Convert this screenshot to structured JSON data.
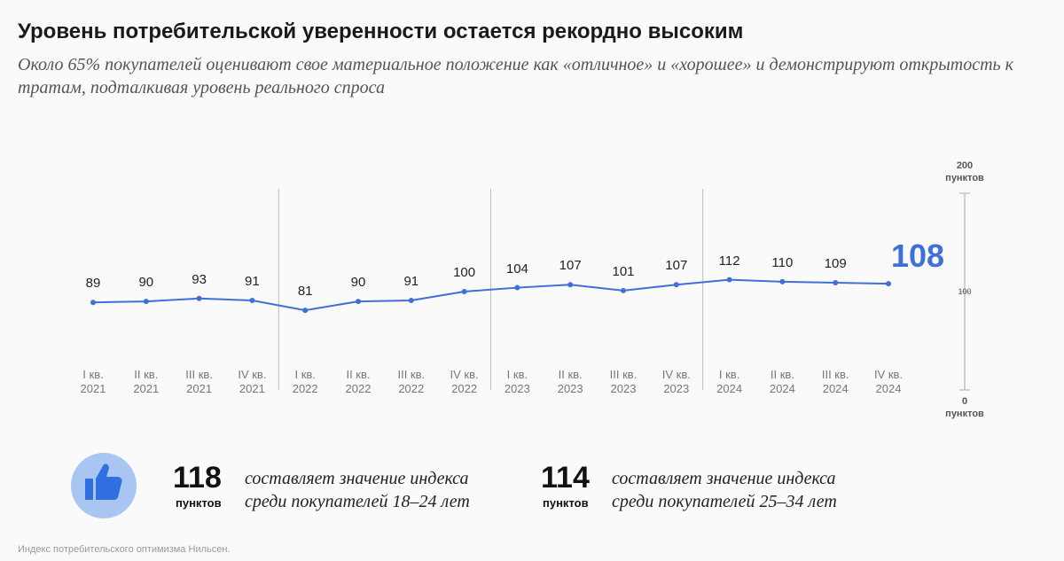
{
  "title": "Уровень потребительской уверенности остается рекордно высоким",
  "subtitle": "Около 65% покупателей оценивают свое материальное положение как «отличное» и «хорошее» и демонстрируют открытость к тратам, подталкивая уровень реального спроса",
  "chart_data": {
    "type": "line",
    "categories": [
      "I кв.\n2021",
      "II кв.\n2021",
      "III кв.\n2021",
      "IV кв.\n2021",
      "I кв.\n2022",
      "II кв.\n2022",
      "III кв.\n2022",
      "IV кв.\n2022",
      "I кв.\n2023",
      "II кв.\n2023",
      "III кв.\n2023",
      "IV кв.\n2023",
      "I кв.\n2024",
      "II кв.\n2024",
      "III кв.\n2024",
      "IV кв.\n2024"
    ],
    "series": [
      {
        "color": "#3f6fd9",
        "values": [
          89,
          90,
          93,
          91,
          81,
          90,
          91,
          100,
          104,
          107,
          101,
          107,
          112,
          110,
          109,
          108
        ]
      }
    ],
    "ylim": [
      0,
      200
    ],
    "yticks": [
      {
        "value": 0,
        "label": "0\nпунктов"
      },
      100,
      {
        "value": 200,
        "label": "200\nпунктов"
      }
    ]
  },
  "stats": [
    {
      "value": 118,
      "unit": "пунктов",
      "text": "составляет значение индекса\nсреди покупателей 18–24 лет"
    },
    {
      "value": 114,
      "unit": "пунктов",
      "text": "составляет значение индекса\nсреди покупателей 25–34 лет"
    }
  ],
  "footnote": "Индекс потребительского оптимизма Нильсен."
}
